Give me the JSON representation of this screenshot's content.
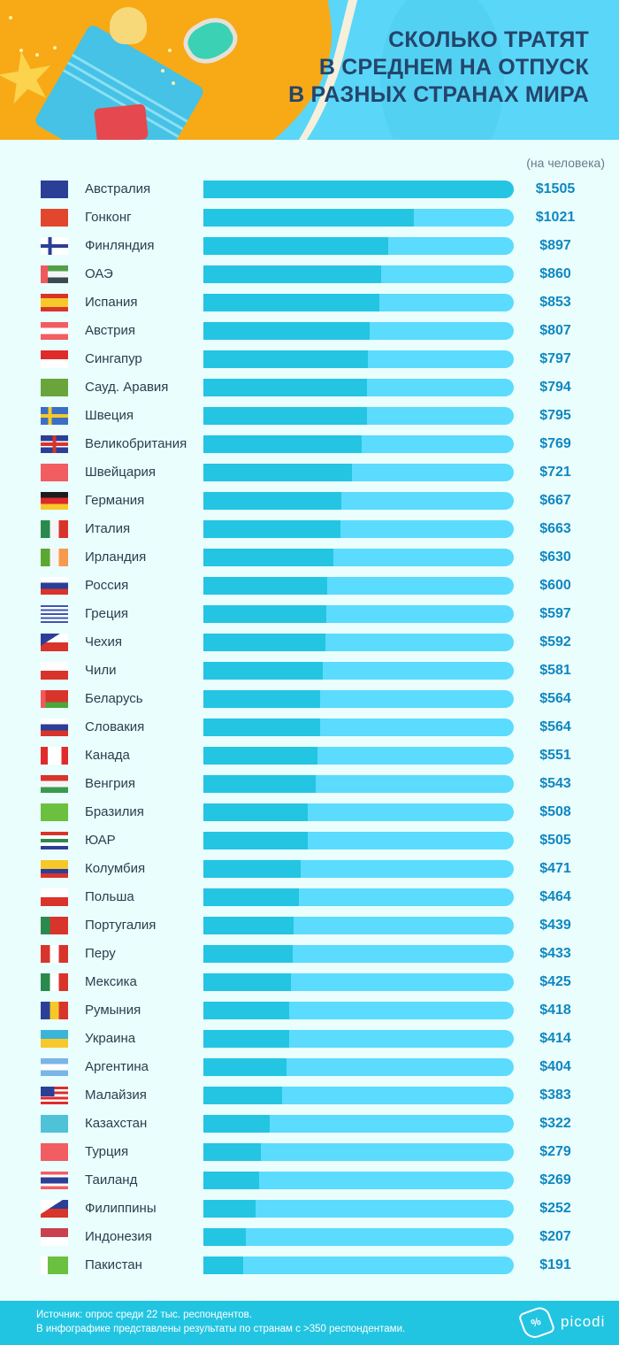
{
  "header": {
    "title_lines": [
      "СКОЛЬКО ТРАТЯТ",
      "В СРЕДНЕМ НА ОТПУСК",
      "В РАЗНЫХ СТРАНАХ МИРА"
    ]
  },
  "unit_label": "(на человека)",
  "footer": {
    "source_line": "Источник: опрос среди 22 тыс. респондентов.",
    "note_line": "В инфографике представлены результаты по странам с >350 респондентами.",
    "logo_text": "picodi"
  },
  "colors": {
    "bar_fill": "#23c5e2",
    "bar_track": "#5bdbfd",
    "value_text": "#0f87c1",
    "title_text": "#24456b",
    "background": "#eafefe",
    "footer_bg": "#22c5e1"
  },
  "rows": [
    {
      "country": "Австралия",
      "flag": "australia-flag",
      "label": "$1505",
      "value": 1505
    },
    {
      "country": "Гонконг",
      "flag": "hong-kong-flag",
      "label": "$1021",
      "value": 1021
    },
    {
      "country": "Финляндия",
      "flag": "finland-flag",
      "label": "$897",
      "value": 897
    },
    {
      "country": "ОАЭ",
      "flag": "uae-flag",
      "label": "$860",
      "value": 860
    },
    {
      "country": "Испания",
      "flag": "spain-flag",
      "label": "$853",
      "value": 853
    },
    {
      "country": "Австрия",
      "flag": "austria-flag",
      "label": "$807",
      "value": 807
    },
    {
      "country": "Сингапур",
      "flag": "singapore-flag",
      "label": "$797",
      "value": 797
    },
    {
      "country": "Сауд. Аравия",
      "flag": "saudi-arabia-flag",
      "label": "$794",
      "value": 794
    },
    {
      "country": "Швеция",
      "flag": "sweden-flag",
      "label": "$795",
      "value": 795
    },
    {
      "country": "Великобритания",
      "flag": "uk-flag",
      "label": "$769",
      "value": 769
    },
    {
      "country": "Швейцария",
      "flag": "switzerland-flag",
      "label": "$721",
      "value": 721
    },
    {
      "country": "Германия",
      "flag": "germany-flag",
      "label": "$667",
      "value": 667
    },
    {
      "country": "Италия",
      "flag": "italy-flag",
      "label": "$663",
      "value": 663
    },
    {
      "country": "Ирландия",
      "flag": "ireland-flag",
      "label": "$630",
      "value": 630
    },
    {
      "country": "Россия",
      "flag": "russia-flag",
      "label": "$600",
      "value": 600
    },
    {
      "country": "Греция",
      "flag": "greece-flag",
      "label": "$597",
      "value": 597
    },
    {
      "country": "Чехия",
      "flag": "czechia-flag",
      "label": "$592",
      "value": 592
    },
    {
      "country": "Чили",
      "flag": "chile-flag",
      "label": "$581",
      "value": 581
    },
    {
      "country": "Беларусь",
      "flag": "belarus-flag",
      "label": "$564",
      "value": 564
    },
    {
      "country": "Словакия",
      "flag": "slovakia-flag",
      "label": "$564",
      "value": 564
    },
    {
      "country": "Канада",
      "flag": "canada-flag",
      "label": "$551",
      "value": 551
    },
    {
      "country": "Венгрия",
      "flag": "hungary-flag",
      "label": "$543",
      "value": 543
    },
    {
      "country": "Бразилия",
      "flag": "brazil-flag",
      "label": "$508",
      "value": 508
    },
    {
      "country": "ЮАР",
      "flag": "south-africa-flag",
      "label": "$505",
      "value": 505
    },
    {
      "country": "Колумбия",
      "flag": "colombia-flag",
      "label": "$471",
      "value": 471
    },
    {
      "country": "Польша",
      "flag": "poland-flag",
      "label": "$464",
      "value": 464
    },
    {
      "country": "Португалия",
      "flag": "portugal-flag",
      "label": "$439",
      "value": 439
    },
    {
      "country": "Перу",
      "flag": "peru-flag",
      "label": "$433",
      "value": 433
    },
    {
      "country": "Мексика",
      "flag": "mexico-flag",
      "label": "$425",
      "value": 425
    },
    {
      "country": "Румыния",
      "flag": "romania-flag",
      "label": "$418",
      "value": 418
    },
    {
      "country": "Украина",
      "flag": "ukraine-flag",
      "label": "$414",
      "value": 414
    },
    {
      "country": "Аргентина",
      "flag": "argentina-flag",
      "label": "$404",
      "value": 404
    },
    {
      "country": "Малайзия",
      "flag": "malaysia-flag",
      "label": "$383",
      "value": 383
    },
    {
      "country": "Казахстан",
      "flag": "kazakhstan-flag",
      "label": "$322",
      "value": 322
    },
    {
      "country": "Турция",
      "flag": "turkey-flag",
      "label": "$279",
      "value": 279
    },
    {
      "country": "Таиланд",
      "flag": "thailand-flag",
      "label": "$269",
      "value": 269
    },
    {
      "country": "Филиппины",
      "flag": "philippines-flag",
      "label": "$252",
      "value": 252
    },
    {
      "country": "Индонезия",
      "flag": "indonesia-flag",
      "label": "$207",
      "value": 207
    },
    {
      "country": "Пакистан",
      "flag": "pakistan-flag",
      "label": "$191",
      "value": 191
    }
  ],
  "chart_data": {
    "type": "bar",
    "orientation": "horizontal",
    "title": "Сколько тратят в среднем на отпуск в разных странах мира",
    "subtitle": "(на человека)",
    "xlabel": "",
    "ylabel": "",
    "value_prefix": "$",
    "xlim": [
      0,
      1505
    ],
    "grid": false,
    "legend": null,
    "categories": [
      "Австралия",
      "Гонконг",
      "Финляндия",
      "ОАЭ",
      "Испания",
      "Австрия",
      "Сингапур",
      "Сауд. Аравия",
      "Швеция",
      "Великобритания",
      "Швейцария",
      "Германия",
      "Италия",
      "Ирландия",
      "Россия",
      "Греция",
      "Чехия",
      "Чили",
      "Беларусь",
      "Словакия",
      "Канада",
      "Венгрия",
      "Бразилия",
      "ЮАР",
      "Колумбия",
      "Польша",
      "Португалия",
      "Перу",
      "Мексика",
      "Румыния",
      "Украина",
      "Аргентина",
      "Малайзия",
      "Казахстан",
      "Турция",
      "Таиланд",
      "Филиппины",
      "Индонезия",
      "Пакистан"
    ],
    "values": [
      1505,
      1021,
      897,
      860,
      853,
      807,
      797,
      794,
      795,
      769,
      721,
      667,
      663,
      630,
      600,
      597,
      592,
      581,
      564,
      564,
      551,
      543,
      508,
      505,
      471,
      464,
      439,
      433,
      425,
      418,
      414,
      404,
      383,
      322,
      279,
      269,
      252,
      207,
      191
    ],
    "annotations": [
      "Источник: опрос среди 22 тыс. респондентов.",
      "В инфографике представлены результаты по странам с >350 респондентами."
    ]
  }
}
